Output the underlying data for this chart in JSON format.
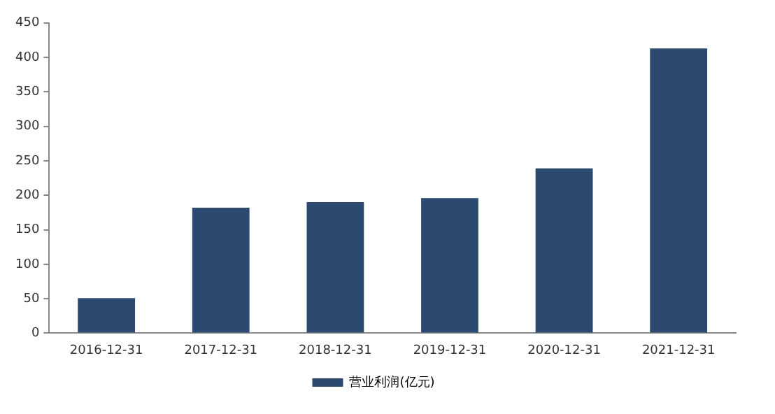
{
  "chart_data": {
    "type": "bar",
    "categories": [
      "2016-12-31",
      "2017-12-31",
      "2018-12-31",
      "2019-12-31",
      "2020-12-31",
      "2021-12-31"
    ],
    "series": [
      {
        "name": "营业利润(亿元)",
        "color": "#2c4a70",
        "values": [
          51,
          182,
          190,
          196,
          239,
          413
        ]
      }
    ],
    "ylim": [
      0,
      450
    ],
    "yticks": [
      0,
      50,
      100,
      150,
      200,
      250,
      300,
      350,
      400,
      450
    ],
    "grid": false,
    "legend": "bottom"
  }
}
